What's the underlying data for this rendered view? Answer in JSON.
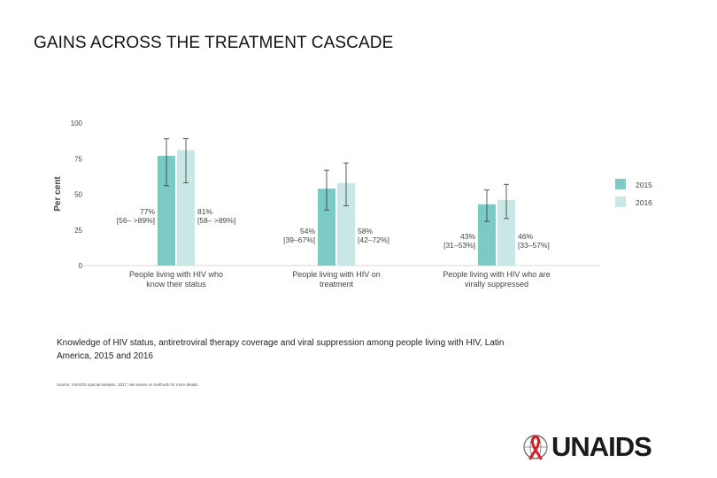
{
  "slide": {
    "title": "GAINS ACROSS THE TREATMENT CASCADE",
    "caption": "Knowledge of HIV status, antiretroviral therapy coverage and viral suppression among people living with HIV, Latin America, 2015 and 2016",
    "source": "Source: UNAIDS special analysis, 2017; see annex on methods for more details."
  },
  "logo": {
    "text": "UNAIDS"
  },
  "colors": {
    "s2015": "#7ccac5",
    "s2016": "#c9e8e5",
    "axis": "#d9d9d9",
    "text": "#444444",
    "error": "#333333"
  },
  "chart_data": {
    "type": "bar",
    "ylabel": "Per cent",
    "ylim": [
      0,
      100
    ],
    "yticks": [
      0,
      25,
      50,
      75,
      100
    ],
    "grid": false,
    "legend_position": "right",
    "categories": [
      [
        "People living with HIV who",
        "know their status"
      ],
      [
        "People living with HIV on",
        "treatment"
      ],
      [
        "People living with HIV who are",
        "virally suppressed"
      ]
    ],
    "series": [
      {
        "name": "2015",
        "values": [
          77,
          54,
          43
        ],
        "ci": [
          [
            56,
            89
          ],
          [
            39,
            67
          ],
          [
            31,
            53
          ]
        ],
        "labels": [
          [
            "77%",
            "[56– >89%]"
          ],
          [
            "54%",
            "[39–67%]"
          ],
          [
            "43%",
            "[31–53%]"
          ]
        ]
      },
      {
        "name": "2016",
        "values": [
          81,
          58,
          46
        ],
        "ci": [
          [
            58,
            89
          ],
          [
            42,
            72
          ],
          [
            33,
            57
          ]
        ],
        "labels": [
          [
            "81%",
            "[58– >89%]"
          ],
          [
            "58%",
            "[42–72%]"
          ],
          [
            "46%",
            "[33–57%]"
          ]
        ]
      }
    ]
  }
}
